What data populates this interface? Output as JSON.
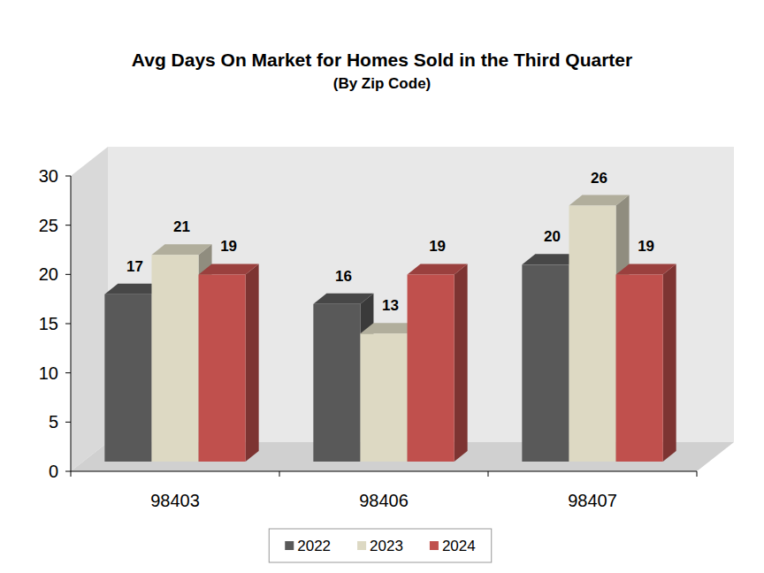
{
  "chart_data": {
    "type": "bar",
    "title": "Avg Days On Market for Homes Sold in the Third Quarter",
    "subtitle": "(By Zip Code)",
    "categories": [
      "98403",
      "98406",
      "98407"
    ],
    "series": [
      {
        "name": "2022",
        "color": "#595959",
        "values": [
          17,
          16,
          20
        ]
      },
      {
        "name": "2023",
        "color": "#ddd9c3",
        "values": [
          21,
          13,
          26
        ]
      },
      {
        "name": "2024",
        "color": "#c0504d",
        "values": [
          19,
          19,
          19
        ]
      }
    ],
    "ylim": [
      0,
      30
    ],
    "yticks": [
      0,
      5,
      10,
      15,
      20,
      25,
      30
    ],
    "grid": false,
    "data_labels": true,
    "legend": "bottom"
  }
}
